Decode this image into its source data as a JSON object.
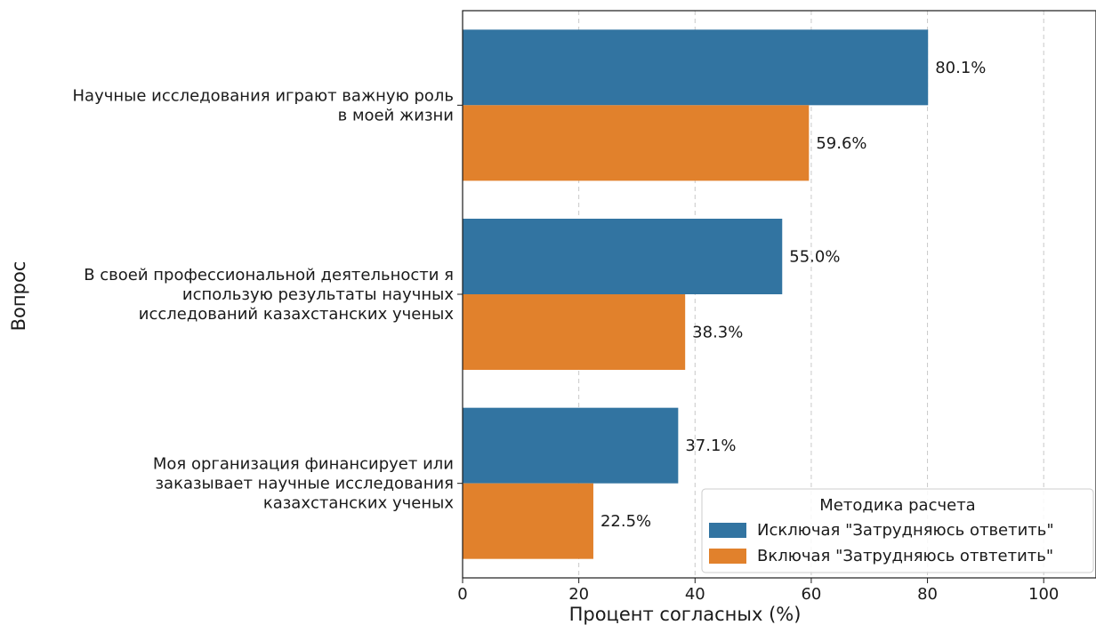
{
  "chart_data": {
    "type": "bar",
    "orientation": "horizontal",
    "categories": [
      [
        "Научные исследования играют важную роль",
        "в моей жизни"
      ],
      [
        "В своей профессиональной деятельности я",
        "использую результаты научных",
        "исследований казахстанских ученых"
      ],
      [
        "Моя организация финансирует или",
        "заказывает научные исследования",
        "казахстанских ученых"
      ]
    ],
    "series": [
      {
        "name": "Исключая \"Затрудняюсь ответить\"",
        "color": "#3274a1",
        "values": [
          80.1,
          55.0,
          37.1
        ],
        "labels": [
          "80.1%",
          "55.0%",
          "37.1%"
        ]
      },
      {
        "name": "Включая \"Затрудняюсь отвтетить\"",
        "color": "#e1812c",
        "values": [
          59.6,
          38.3,
          22.5
        ],
        "labels": [
          "59.6%",
          "38.3%",
          "22.5%"
        ]
      }
    ],
    "xlabel": "Процент согласных (%)",
    "ylabel": "Вопрос",
    "xlim": [
      0,
      109
    ],
    "xticks": [
      0,
      20,
      40,
      60,
      80,
      100
    ],
    "grid": "x dashed",
    "legend": {
      "title": "Методика расчета",
      "placement": "lower-right"
    }
  }
}
